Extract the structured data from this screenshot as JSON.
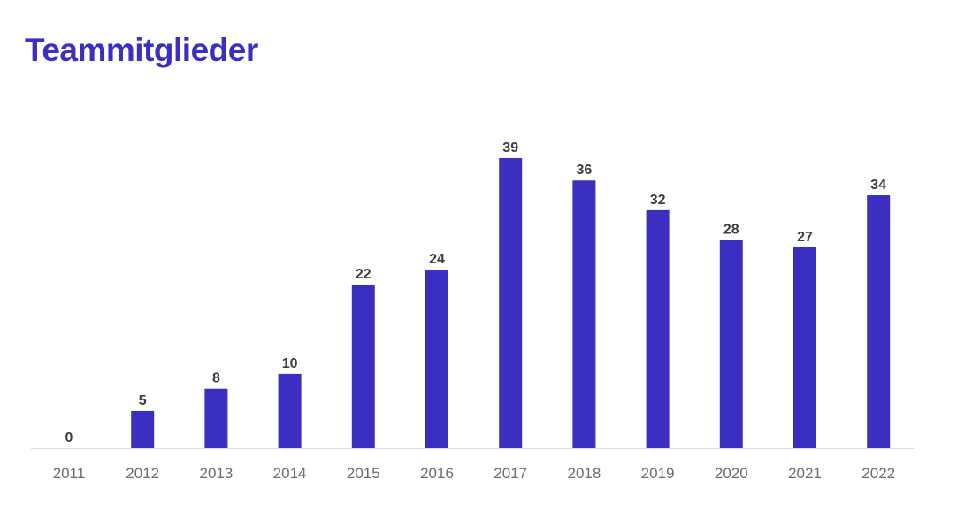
{
  "chart_data": {
    "type": "bar",
    "title": "Teammitglieder",
    "xlabel": "",
    "ylabel": "",
    "categories": [
      "2011",
      "2012",
      "2013",
      "2014",
      "2015",
      "2016",
      "2017",
      "2018",
      "2019",
      "2020",
      "2021",
      "2022"
    ],
    "values": [
      0,
      5,
      8,
      10,
      22,
      24,
      39,
      36,
      32,
      28,
      27,
      34
    ],
    "ylim": [
      0,
      39
    ],
    "grid": false,
    "legend": "none",
    "data_labels": true
  },
  "colors": {
    "title": "#3a2fc1",
    "bar": "#3a2fc1",
    "axis": "#d9d9d9",
    "data_label": "#3d3d3d",
    "tick_label": "#6b6b6b"
  }
}
